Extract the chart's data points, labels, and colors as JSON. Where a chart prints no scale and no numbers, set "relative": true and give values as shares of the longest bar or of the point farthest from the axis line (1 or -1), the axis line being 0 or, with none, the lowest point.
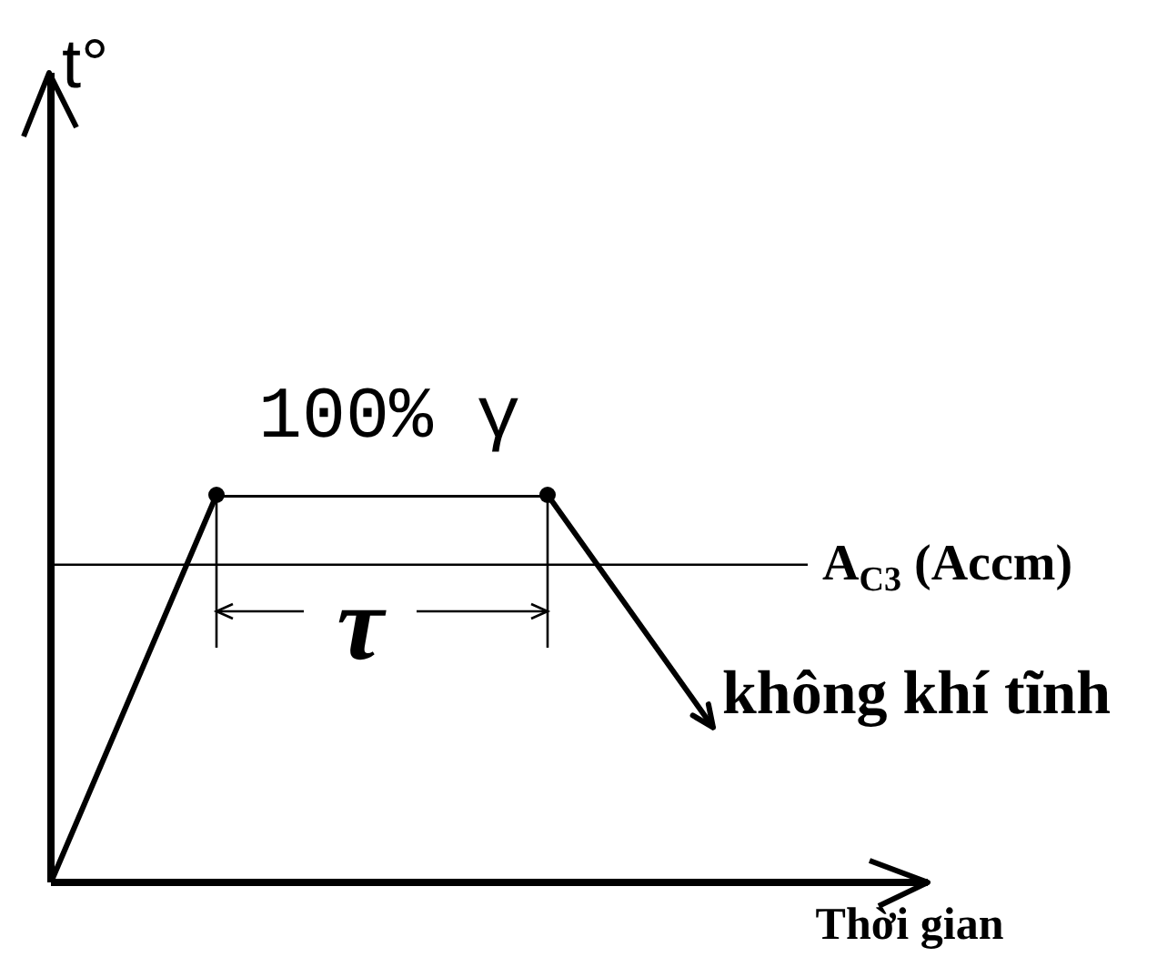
{
  "chart_data": {
    "type": "line",
    "xlabel": "Thời gian",
    "relative": true,
    "categories": [
      null,
      null,
      null,
      null,
      null
    ],
    "series": [
      {
        "color": "#000000",
        "values": [
          0,
          1,
          1,
          1,
          0.4
        ]
      }
    ],
    "ref_lines": [
      {
        "axis": "y",
        "value": 0.82,
        "label": "A$_{C3}$ (Accm)",
        "color": "#000000"
      }
    ],
    "annotations": [
      {
        "text": "100% γ",
        "y": 1
      },
      "τ",
      "không khí tĩnh",
      "t°"
    ]
  }
}
